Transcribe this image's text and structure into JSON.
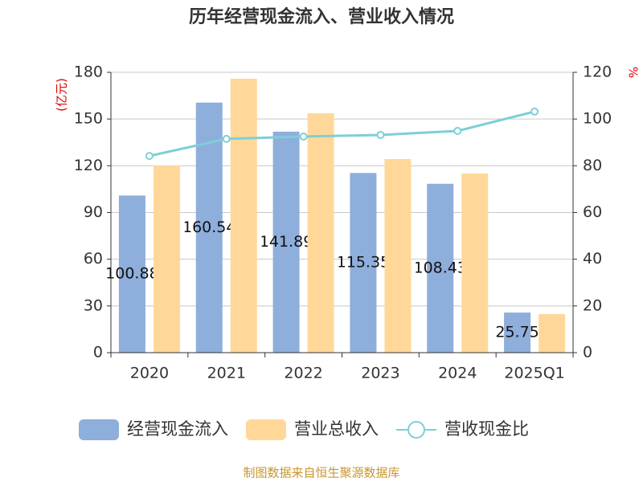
{
  "chart_data": {
    "type": "bar_line",
    "title": "历年经营现金流入、营业收入情况",
    "ylabel": "(亿元)",
    "y2label": "%",
    "categories": [
      "2020",
      "2021",
      "2022",
      "2023",
      "2024",
      "2025Q1"
    ],
    "series": [
      {
        "name": "经营现金流入",
        "type": "bar",
        "color": "#8eaedc",
        "values": [
          100.88,
          160.54,
          141.89,
          115.35,
          108.43,
          25.75
        ]
      },
      {
        "name": "营业总收入",
        "type": "bar",
        "color": "#ffd899",
        "values": [
          120.2,
          175.9,
          153.7,
          124.3,
          115.0,
          24.8
        ]
      },
      {
        "name": "营收现金比",
        "type": "line",
        "axis": "y2",
        "color": "#7ecfd6",
        "values": [
          84.2,
          91.5,
          92.5,
          93.2,
          94.9,
          103.2
        ]
      }
    ],
    "ylim": [
      0,
      180
    ],
    "yticks": [
      0,
      30,
      60,
      90,
      120,
      150,
      180
    ],
    "y2lim": [
      0,
      120
    ],
    "y2ticks": [
      0,
      20,
      40,
      60,
      80,
      100,
      120
    ],
    "grid": true,
    "source": "制图数据来自恒生聚源数据库"
  }
}
